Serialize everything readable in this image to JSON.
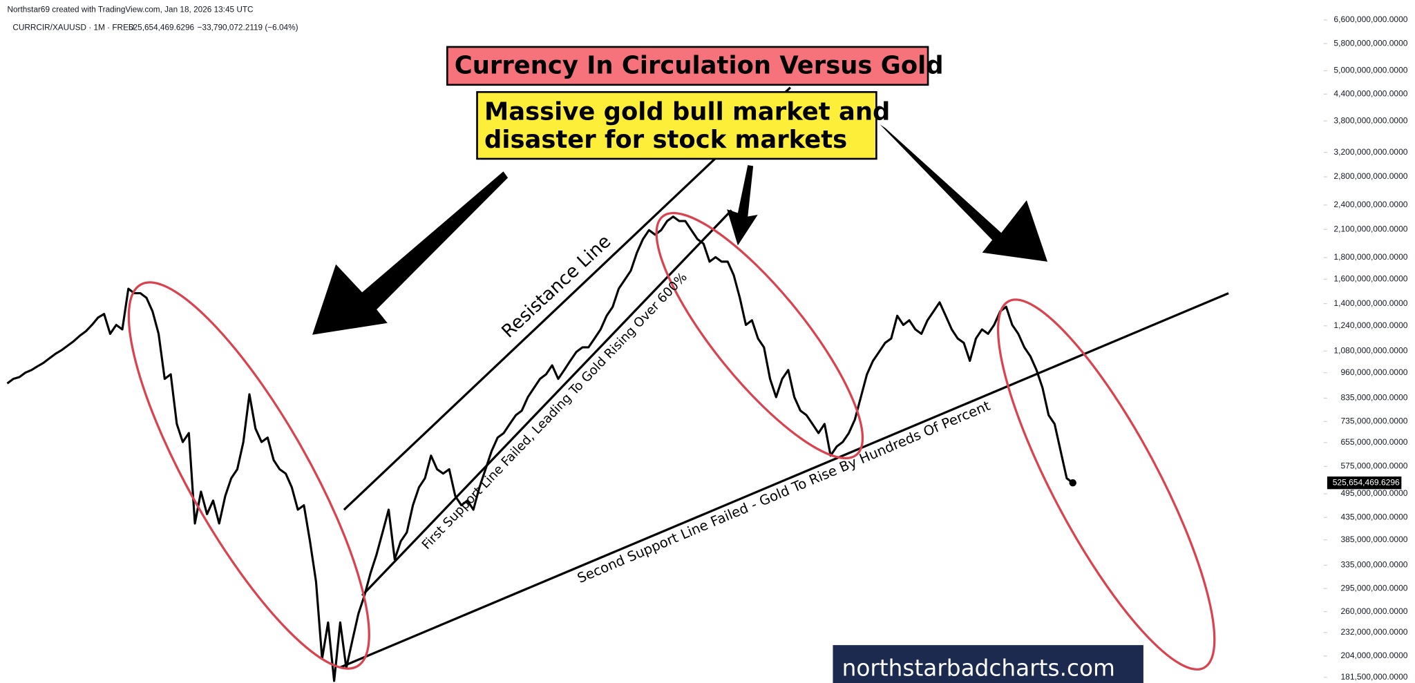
{
  "header": {
    "credit": "Northstar69 created with TradingView.com, Jan 18, 2026 13:45 UTC",
    "symbol": "CURRCIR/XAUUSD · 1M · FRED",
    "price": "525,654,469.6296",
    "change": "−33,790,072.2119 (−6.04%)"
  },
  "chart_data": {
    "type": "line",
    "title": "Currency In Circulation Versus Gold",
    "subtitle": [
      "Massive gold bull market and",
      "disaster for stock markets"
    ],
    "annotations": [
      "Resistance Line",
      "First Support Line Failed, Leading To Gold Rising Over 600%",
      "Second Support Line Failed - Gold To Rise By Hundreds Of Percent"
    ],
    "watermark": "northstarbadcharts.com",
    "log_scale": true,
    "color": "#000000",
    "ylim": [
      176000000,
      7360000000
    ],
    "yticks": [
      {
        "value": 6600000000,
        "label": "6,600,000,000.0000"
      },
      {
        "value": 5800000000,
        "label": "5,800,000,000.0000"
      },
      {
        "value": 5000000000,
        "label": "5,000,000,000.0000"
      },
      {
        "value": 4400000000,
        "label": "4,400,000,000.0000"
      },
      {
        "value": 3800000000,
        "label": "3,800,000,000.0000"
      },
      {
        "value": 3200000000,
        "label": "3,200,000,000.0000"
      },
      {
        "value": 2800000000,
        "label": "2,800,000,000.0000"
      },
      {
        "value": 2400000000,
        "label": "2,400,000,000.0000"
      },
      {
        "value": 2100000000,
        "label": "2,100,000,000.0000"
      },
      {
        "value": 1800000000,
        "label": "1,800,000,000.0000"
      },
      {
        "value": 1600000000,
        "label": "1,600,000,000.0000"
      },
      {
        "value": 1400000000,
        "label": "1,400,000,000.0000"
      },
      {
        "value": 1240000000,
        "label": "1,240,000,000.0000"
      },
      {
        "value": 1080000000,
        "label": "1,080,000,000.0000"
      },
      {
        "value": 960000000,
        "label": "960,000,000.0000"
      },
      {
        "value": 835000000,
        "label": "835,000,000.0000"
      },
      {
        "value": 735000000,
        "label": "735,000,000.0000"
      },
      {
        "value": 655000000,
        "label": "655,000,000.0000"
      },
      {
        "value": 575000000,
        "label": "575,000,000.0000"
      },
      {
        "value": 495000000,
        "label": "495,000,000.0000"
      },
      {
        "value": 435000000,
        "label": "435,000,000.0000"
      },
      {
        "value": 385000000,
        "label": "385,000,000.0000"
      },
      {
        "value": 335000000,
        "label": "335,000,000.0000"
      },
      {
        "value": 295000000,
        "label": "295,000,000.0000"
      },
      {
        "value": 260000000,
        "label": "260,000,000.0000"
      },
      {
        "value": 232000000,
        "label": "232,000,000.0000"
      },
      {
        "value": 204000000,
        "label": "204,000,000.0000"
      },
      {
        "value": 181500000,
        "label": "181,500,000.0000"
      }
    ],
    "values": [
      905000000,
      928000000,
      937000000,
      960000000,
      974000000,
      994000000,
      1013000000,
      1039000000,
      1065000000,
      1086000000,
      1113000000,
      1141000000,
      1175000000,
      1204000000,
      1246000000,
      1297000000,
      1323000000,
      1187000000,
      1246000000,
      1216000000,
      1519000000,
      1482000000,
      1482000000,
      1445000000,
      1342000000,
      1187000000,
      928000000,
      951000000,
      725000000,
      657000000,
      690000000,
      421000000,
      501000000,
      443000000,
      477000000,
      421000000,
      489000000,
      539000000,
      566000000,
      657000000,
      853000000,
      707000000,
      657000000,
      673000000,
      595000000,
      566000000,
      553000000,
      513000000,
      454000000,
      465000000,
      382000000,
      306000000,
      201000000,
      245000000,
      178000000,
      245000000,
      191000000,
      222000000,
      257000000,
      284000000,
      321000000,
      355000000,
      401000000,
      454000000,
      346000000,
      382000000,
      401000000,
      465000000,
      513000000,
      539000000,
      610000000,
      566000000,
      553000000,
      566000000,
      489000000,
      465000000,
      477000000,
      454000000,
      513000000,
      566000000,
      625000000,
      673000000,
      690000000,
      725000000,
      761000000,
      780000000,
      840000000,
      883000000,
      928000000,
      951000000,
      999000000,
      928000000,
      974000000,
      1024000000,
      1075000000,
      1102000000,
      1102000000,
      1157000000,
      1216000000,
      1310000000,
      1376000000,
      1519000000,
      1595000000,
      1676000000,
      1849000000,
      1992000000,
      2092000000,
      2041000000,
      2092000000,
      2198000000,
      2252000000,
      2198000000,
      2198000000,
      2092000000,
      1992000000,
      1943000000,
      1761000000,
      1805000000,
      1761000000,
      1761000000,
      1635000000,
      1445000000,
      1246000000,
      1278000000,
      1157000000,
      1102000000,
      928000000,
      840000000,
      928000000,
      974000000,
      840000000,
      780000000,
      761000000,
      725000000,
      690000000,
      725000000,
      610000000,
      641000000,
      657000000,
      690000000,
      743000000,
      840000000,
      951000000,
      1024000000,
      1075000000,
      1130000000,
      1157000000,
      1310000000,
      1246000000,
      1278000000,
      1216000000,
      1187000000,
      1278000000,
      1342000000,
      1410000000,
      1310000000,
      1216000000,
      1157000000,
      1130000000,
      1024000000,
      1157000000,
      1216000000,
      1187000000,
      1246000000,
      1342000000,
      1376000000,
      1246000000,
      1187000000,
      1102000000,
      1049000000,
      974000000,
      883000000,
      761000000,
      725000000,
      625000000,
      539000000,
      525654469.6296
    ]
  }
}
